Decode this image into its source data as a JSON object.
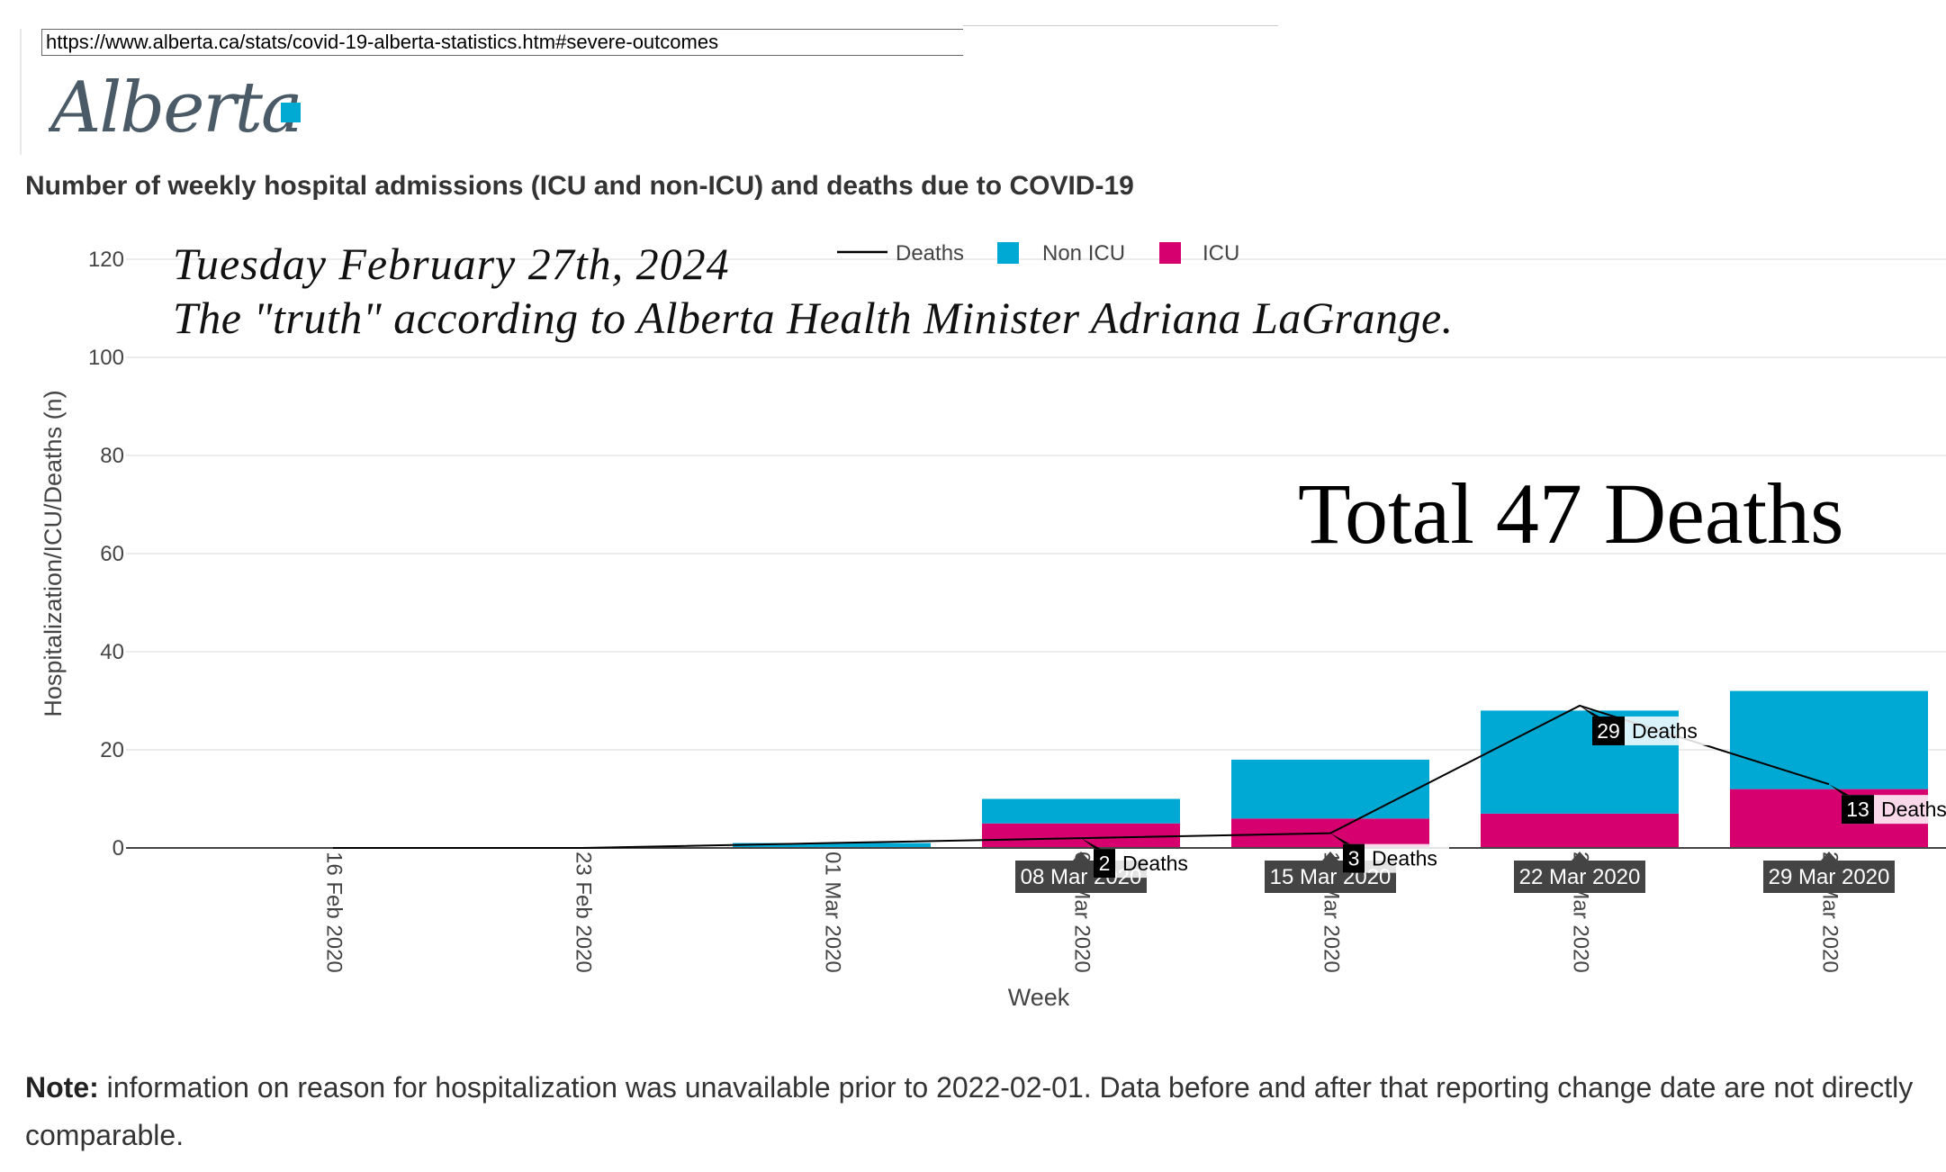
{
  "browser": {
    "url": "https://www.alberta.ca/stats/covid-19-alberta-statistics.htm#severe-outcomes"
  },
  "logo": {
    "text": "Alberta",
    "accent_color": "#00aad2"
  },
  "page": {
    "title": "Number of weekly hospital admissions (ICU and non-ICU) and deaths due to COVID-19",
    "note_label": "Note:",
    "note_text": " information on reason for hospitalization was unavailable prior to 2022-02-01. Data before and after that reporting change date are not directly comparable."
  },
  "annotations": {
    "date": "Tuesday February 27th, 2024",
    "quote": "The \"truth\" according to Alberta Health Minister Adriana LaGrange.",
    "total": "Total 47 Deaths"
  },
  "chart_data": {
    "type": "bar",
    "stacked": true,
    "categories": [
      "16 Feb 2020",
      "23 Feb 2020",
      "01 Mar 2020",
      "08 Mar 2020",
      "15 Mar 2020",
      "22 Mar 2020",
      "29 Mar 2020"
    ],
    "series": [
      {
        "name": "ICU",
        "type": "bar",
        "color": "#d6006f",
        "values": [
          0,
          0,
          0,
          5,
          6,
          7,
          12
        ]
      },
      {
        "name": "Non ICU",
        "type": "bar",
        "color": "#00a9d4",
        "values": [
          0,
          0,
          1,
          5,
          12,
          21,
          20
        ]
      },
      {
        "name": "Deaths",
        "type": "line",
        "color": "#000000",
        "values": [
          0,
          0,
          1,
          2,
          3,
          29,
          13
        ]
      }
    ],
    "legend": [
      "Deaths",
      "Non ICU",
      "ICU"
    ],
    "legend_position": "top",
    "xlabel": "Week",
    "ylabel": "Hospitalization/ICU/Deaths (n)",
    "ylim": [
      0,
      120
    ],
    "yticks": [
      0,
      20,
      40,
      60,
      80,
      100,
      120
    ],
    "grid": true,
    "hover_labels": {
      "dates": [
        "08 Mar 2020",
        "15 Mar 2020",
        "22 Mar 2020",
        "29 Mar 2020"
      ],
      "deaths": [
        {
          "number": "2",
          "label": "Deaths"
        },
        {
          "number": "3",
          "label": "Deaths"
        },
        {
          "number": "29",
          "label": "Deaths"
        },
        {
          "number": "13",
          "label": "Deaths"
        }
      ]
    }
  }
}
